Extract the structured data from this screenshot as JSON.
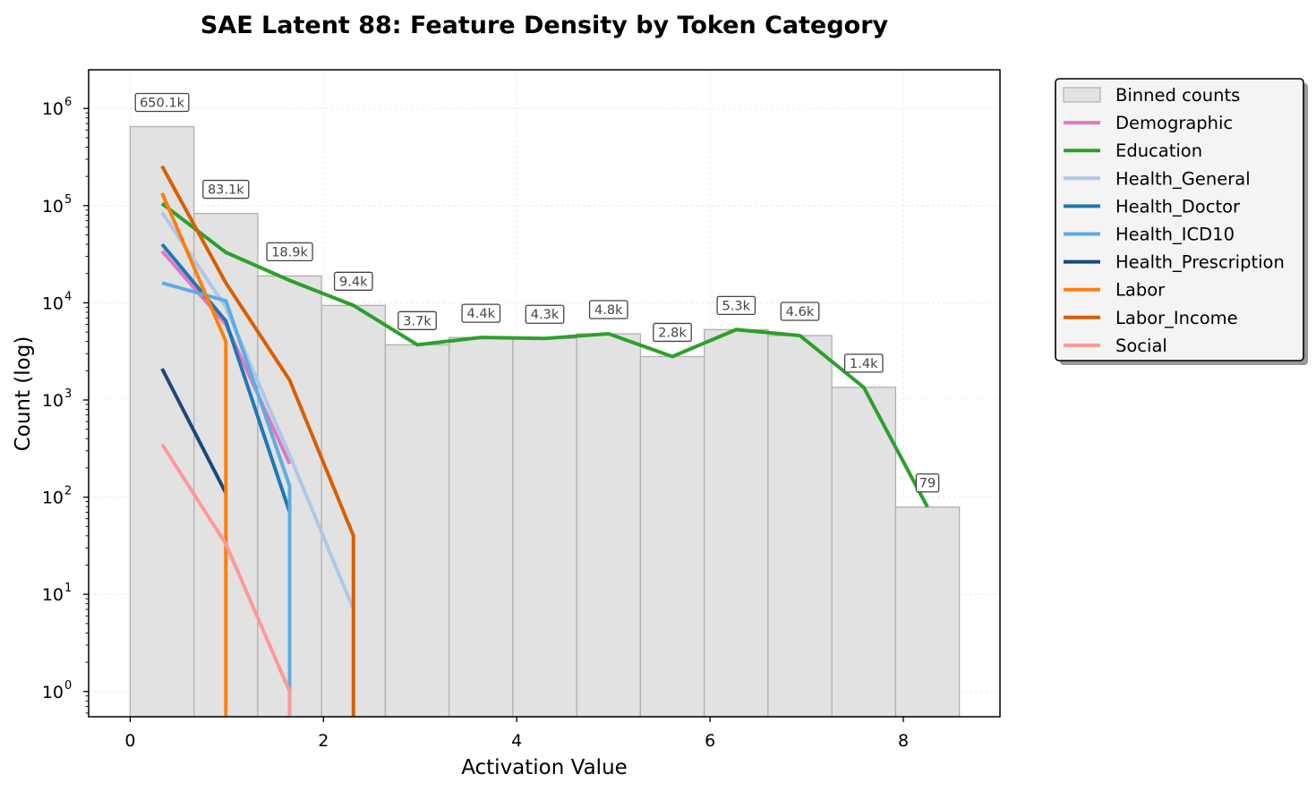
{
  "chart_data": {
    "type": "bar",
    "title": "SAE Latent 88: Feature Density by Token Category",
    "xlabel": "Activation Value",
    "ylabel": "Count (log)",
    "xlim": [
      -0.43,
      9.0
    ],
    "ylim": [
      0.55,
      2500000
    ],
    "yscale": "log",
    "grid": true,
    "legend_position": "outside-right",
    "x_ticks": [
      0,
      2,
      4,
      6,
      8
    ],
    "y_ticks": [
      {
        "value": 1,
        "base": "10",
        "exp": "0"
      },
      {
        "value": 10,
        "base": "10",
        "exp": "1"
      },
      {
        "value": 100,
        "base": "10",
        "exp": "2"
      },
      {
        "value": 1000,
        "base": "10",
        "exp": "3"
      },
      {
        "value": 10000,
        "base": "10",
        "exp": "4"
      },
      {
        "value": 100000,
        "base": "10",
        "exp": "5"
      },
      {
        "value": 1000000,
        "base": "10",
        "exp": "6"
      }
    ],
    "bins": {
      "name": "Binned counts",
      "color": "#e2e2e2",
      "edge_color": "#b0b0b0",
      "edges": [
        0,
        0.66,
        1.32,
        1.98,
        2.64,
        3.3,
        3.96,
        4.62,
        5.28,
        5.94,
        6.6,
        7.26,
        7.92,
        8.58
      ],
      "counts": [
        650100,
        83100,
        18900,
        9400,
        3700,
        4400,
        4300,
        4800,
        2800,
        5300,
        4600,
        1350,
        79
      ],
      "labels": [
        "650.1k",
        "83.1k",
        "18.9k",
        "9.4k",
        "3.7k",
        "4.4k",
        "4.3k",
        "4.8k",
        "2.8k",
        "5.3k",
        "4.6k",
        "1.4k",
        "79"
      ]
    },
    "series": [
      {
        "name": "Demographic",
        "color": "#e377c2",
        "x": [
          0.33,
          0.99,
          1.65
        ],
        "y": [
          34000,
          6000,
          220
        ]
      },
      {
        "name": "Education",
        "color": "#2ca02c",
        "x": [
          0.33,
          0.99,
          1.65,
          2.31,
          2.97,
          3.63,
          4.29,
          4.95,
          5.61,
          6.27,
          6.93,
          7.59,
          8.25
        ],
        "y": [
          105000,
          33000,
          17000,
          9400,
          3700,
          4400,
          4300,
          4800,
          2800,
          5300,
          4600,
          1350,
          79
        ]
      },
      {
        "name": "Health_General",
        "color": "#aec7e8",
        "x": [
          0.33,
          0.99,
          1.65,
          2.31
        ],
        "y": [
          85000,
          9000,
          270,
          7
        ]
      },
      {
        "name": "Health_Doctor",
        "color": "#1f77b4",
        "x": [
          0.33,
          0.99,
          1.65
        ],
        "y": [
          40000,
          6500,
          70
        ]
      },
      {
        "name": "Health_ICD10",
        "color": "#5dade2",
        "x": [
          0.33,
          0.99,
          1.65,
          1.65
        ],
        "y": [
          16000,
          10500,
          130,
          0.35
        ]
      },
      {
        "name": "Health_Prescription",
        "color": "#174a7c",
        "x": [
          0.33,
          0.99
        ],
        "y": [
          2100,
          110
        ]
      },
      {
        "name": "Labor",
        "color": "#ff7f0e",
        "x": [
          0.33,
          0.99,
          0.99
        ],
        "y": [
          135000,
          4000,
          0.35
        ]
      },
      {
        "name": "Labor_Income",
        "color": "#d95f02",
        "x": [
          0.33,
          0.99,
          1.65,
          2.31,
          2.31
        ],
        "y": [
          255000,
          16000,
          1600,
          40,
          0.35
        ]
      },
      {
        "name": "Social",
        "color": "#ff9896",
        "x": [
          0.33,
          0.99,
          1.65,
          1.65
        ],
        "y": [
          350,
          33,
          1,
          0.35
        ]
      }
    ]
  }
}
